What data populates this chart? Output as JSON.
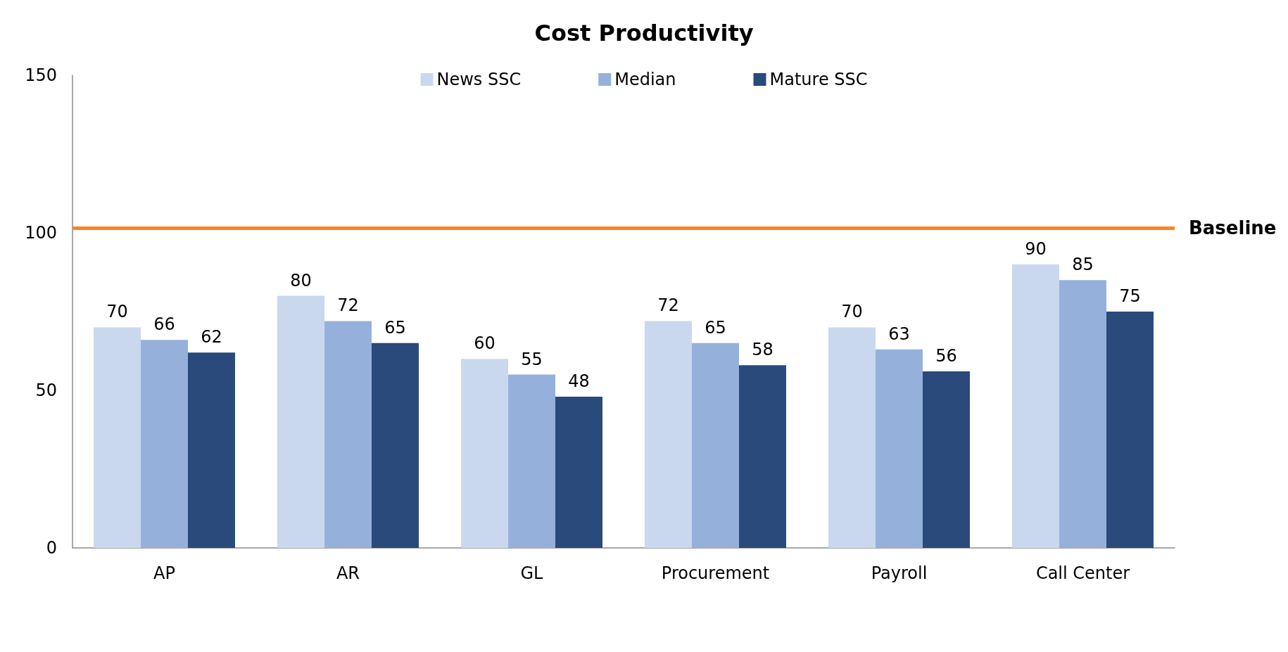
{
  "chart_data": {
    "type": "bar",
    "title": "Cost Productivity",
    "categories": [
      "AP",
      "AR",
      "GL",
      "Procurement",
      "Payroll",
      "Call Center"
    ],
    "series": [
      {
        "name": "News SSC",
        "color": "#c9d8ee",
        "values": [
          70,
          80,
          60,
          72,
          70,
          90
        ]
      },
      {
        "name": "Median",
        "color": "#95b1db",
        "values": [
          66,
          72,
          55,
          65,
          63,
          85
        ]
      },
      {
        "name": "Mature SSC",
        "color": "#294a7a",
        "values": [
          62,
          65,
          48,
          58,
          56,
          75
        ]
      }
    ],
    "ylim": [
      0,
      150
    ],
    "yticks": [
      0,
      50,
      100,
      150
    ],
    "legend": "top",
    "data_labels": true,
    "ref_lines": [
      {
        "axis": "y",
        "value": 101.5,
        "label": "Baseline",
        "color": "#f7861f"
      }
    ]
  }
}
